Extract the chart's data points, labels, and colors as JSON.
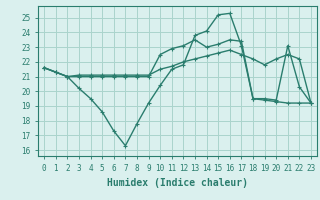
{
  "line1_x": [
    0,
    1,
    2,
    3,
    4,
    5,
    6,
    7,
    8,
    9,
    10,
    11,
    12,
    13,
    14,
    15,
    16,
    17,
    18,
    19,
    20,
    21,
    22,
    23
  ],
  "line1_y": [
    21.6,
    21.3,
    21.0,
    21.1,
    21.1,
    21.1,
    21.1,
    21.1,
    21.1,
    21.1,
    21.5,
    21.7,
    22.0,
    22.2,
    22.4,
    22.6,
    22.8,
    22.5,
    22.2,
    21.8,
    22.2,
    22.5,
    22.2,
    19.2
  ],
  "line2_x": [
    0,
    1,
    2,
    3,
    4,
    5,
    6,
    7,
    8,
    9,
    10,
    11,
    12,
    13,
    14,
    15,
    16,
    17,
    18,
    19,
    20,
    21,
    22,
    23
  ],
  "line2_y": [
    21.6,
    21.3,
    21.0,
    20.2,
    19.5,
    18.6,
    17.3,
    16.3,
    17.8,
    19.2,
    20.4,
    21.5,
    21.8,
    23.8,
    24.1,
    25.2,
    25.3,
    23.1,
    19.5,
    19.5,
    19.4,
    23.1,
    20.3,
    19.2
  ],
  "line3_x": [
    0,
    1,
    2,
    3,
    4,
    5,
    6,
    7,
    8,
    9,
    10,
    11,
    12,
    13,
    14,
    15,
    16,
    17,
    18,
    19,
    20,
    21,
    22,
    23
  ],
  "line3_y": [
    21.6,
    21.3,
    21.0,
    21.0,
    21.0,
    21.0,
    21.0,
    21.0,
    21.0,
    21.0,
    22.5,
    22.9,
    23.1,
    23.5,
    23.0,
    23.2,
    23.5,
    23.4,
    19.5,
    19.4,
    19.3,
    19.2,
    19.2,
    19.2
  ],
  "line_color": "#2a7d6e",
  "bg_color": "#daf0ee",
  "grid_color": "#aad4cc",
  "xlabel": "Humidex (Indice chaleur)",
  "xlabel_fontsize": 7,
  "ylabel_ticks": [
    16,
    17,
    18,
    19,
    20,
    21,
    22,
    23,
    24,
    25
  ],
  "xlabel_ticks": [
    0,
    1,
    2,
    3,
    4,
    5,
    6,
    7,
    8,
    9,
    10,
    11,
    12,
    13,
    14,
    15,
    16,
    17,
    18,
    19,
    20,
    21,
    22,
    23
  ],
  "xlim": [
    -0.5,
    23.5
  ],
  "ylim": [
    15.6,
    25.8
  ],
  "tick_fontsize": 5.5,
  "linewidth": 1.0,
  "marker": "+",
  "markersize": 3.5,
  "markeredgewidth": 0.8
}
